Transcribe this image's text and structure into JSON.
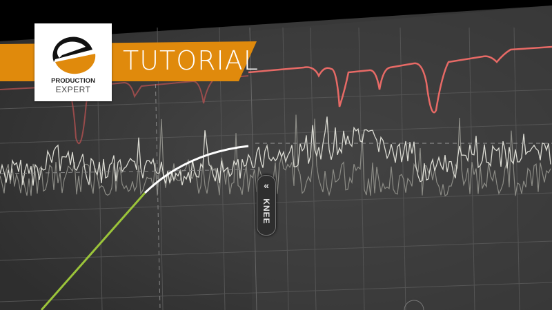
{
  "banner": {
    "label": "TUTORIAL",
    "color": "#e08a0c"
  },
  "logo": {
    "line1": "PRODUCTION",
    "line2": "EXPERT",
    "letter": "e"
  },
  "knee_button": {
    "label": "KNEE",
    "icon": "double-chevron-left-icon"
  },
  "colors": {
    "gain_reduction": "#e86a66",
    "curve_below": "#9bc43a",
    "curve_above": "#ffffff",
    "background": "#3a3a3a"
  }
}
